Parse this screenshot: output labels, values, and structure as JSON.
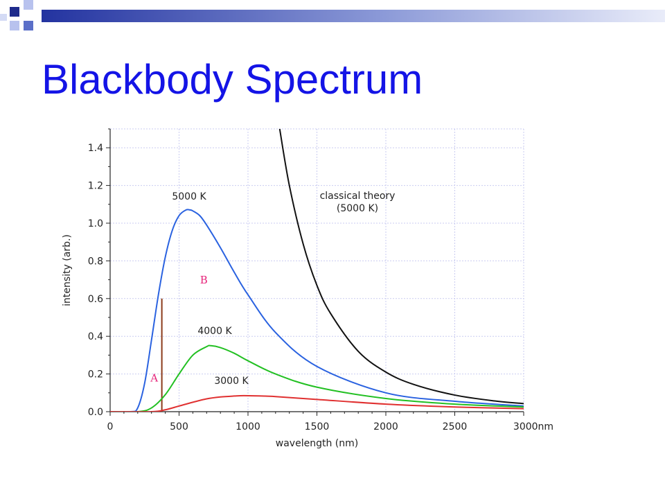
{
  "slide": {
    "title": "Blackbody Spectrum"
  },
  "colors": {
    "title": "#1414e6",
    "deco_navy": "#1f2b8c",
    "deco_blue": "#5b6fc8",
    "deco_light": "#b8c2ee",
    "grid": "#c9cbf0",
    "annotation": "#e6237a",
    "marker_line": "#8b3a1a"
  },
  "chart_data": {
    "type": "line",
    "xlabel": "wavelength (nm)",
    "ylabel": "intensity (arb.)",
    "xlim": [
      0,
      3000
    ],
    "ylim": [
      0,
      1.5
    ],
    "x_ticks": [
      0,
      500,
      1000,
      1500,
      2000,
      2500,
      3000
    ],
    "x_tick_labels": [
      "0",
      "500",
      "1000",
      "1500",
      "2000",
      "2500",
      "3000nm"
    ],
    "y_ticks": [
      0.0,
      0.2,
      0.4,
      0.6,
      0.8,
      1.0,
      1.2,
      1.4
    ],
    "y_tick_labels": [
      "0.0",
      "0.2",
      "0.4",
      "0.6",
      "0.8",
      "1.0",
      "1.2",
      "1.4"
    ],
    "grid": true,
    "series": [
      {
        "name": "5000 K",
        "color": "#2a62e0",
        "x": [
          0,
          150,
          200,
          250,
          300,
          350,
          400,
          450,
          500,
          550,
          580,
          600,
          650,
          700,
          800,
          900,
          1000,
          1200,
          1500,
          2000,
          2500,
          3000
        ],
        "y": [
          0,
          0.0,
          0.02,
          0.15,
          0.38,
          0.62,
          0.82,
          0.96,
          1.04,
          1.07,
          1.07,
          1.065,
          1.04,
          0.99,
          0.87,
          0.74,
          0.62,
          0.42,
          0.24,
          0.1,
          0.055,
          0.03
        ]
      },
      {
        "name": "4000 K",
        "color": "#22c022",
        "x": [
          0,
          200,
          300,
          400,
          500,
          600,
          700,
          730,
          800,
          900,
          1000,
          1200,
          1500,
          2000,
          2500,
          3000
        ],
        "y": [
          0,
          0.0,
          0.02,
          0.09,
          0.2,
          0.3,
          0.345,
          0.35,
          0.34,
          0.31,
          0.27,
          0.2,
          0.13,
          0.07,
          0.04,
          0.025
        ]
      },
      {
        "name": "3000 K",
        "color": "#e03030",
        "x": [
          0,
          300,
          400,
          500,
          600,
          700,
          800,
          900,
          970,
          1100,
          1200,
          1500,
          2000,
          2500,
          3000
        ],
        "y": [
          0,
          0.0,
          0.01,
          0.03,
          0.05,
          0.068,
          0.078,
          0.083,
          0.085,
          0.083,
          0.08,
          0.065,
          0.04,
          0.025,
          0.016
        ]
      },
      {
        "name": "classical theory\n(5000 K)",
        "color": "#111111",
        "x": [
          1230,
          1300,
          1400,
          1500,
          1600,
          1800,
          2000,
          2200,
          2500,
          2800,
          3000
        ],
        "y": [
          1.5,
          1.2,
          0.89,
          0.67,
          0.52,
          0.32,
          0.21,
          0.145,
          0.088,
          0.056,
          0.043
        ]
      }
    ],
    "curve_labels": [
      "5000 K",
      "4000 K",
      "3000 K",
      "classical theory",
      "(5000 K)"
    ],
    "annotations": [
      {
        "text": "A",
        "x": 320,
        "y": 0.16
      },
      {
        "text": "B",
        "x": 680,
        "y": 0.68
      }
    ],
    "marker_line": {
      "x": 375,
      "y0": 0.0,
      "y1": 0.6
    }
  }
}
